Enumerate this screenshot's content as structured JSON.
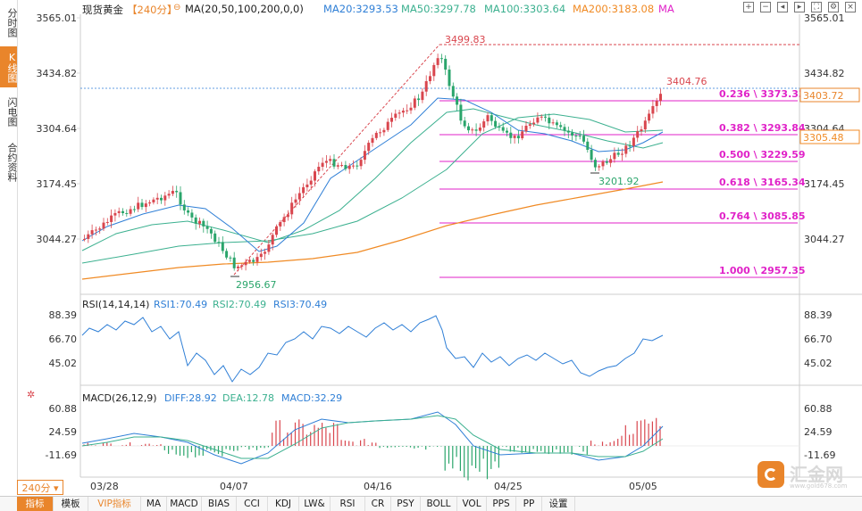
{
  "left_tabs": [
    "分时图",
    "K线图",
    "闪电图",
    "合约资料"
  ],
  "header": {
    "symbol": "现货黄金",
    "period_tag": "【240分】",
    "ma_label": "MA(20,50,100,200,0,0)",
    "ma20": "MA20:3293.53",
    "ma50": "MA50:3297.78",
    "ma100": "MA100:3303.64",
    "ma200": "MA200:3183.08",
    "ma_tail": "MA"
  },
  "price_axis": {
    "left": [
      "3565.01",
      "3434.82",
      "3304.64",
      "3174.45",
      "3044.27"
    ],
    "right": [
      "3565.01",
      "3434.82",
      "3304.64",
      "3174.45",
      "3044.27"
    ],
    "tag_last": "3403.72",
    "tag_ma": "3305.48"
  },
  "annotations": {
    "high": "3499.83",
    "low": "2956.67",
    "last": "3404.76",
    "swing_low": "3201.92"
  },
  "fib_levels": [
    {
      "label": "0.236 \\ 3373.33"
    },
    {
      "label": "0.382 \\ 3293.84"
    },
    {
      "label": "0.500 \\ 3229.59"
    },
    {
      "label": "0.618 \\ 3165.34"
    },
    {
      "label": "0.764 \\ 3085.85"
    },
    {
      "label": "1.000 \\ 2957.35"
    }
  ],
  "rsi": {
    "title": "RSI(14,14,14)",
    "rsi1": "RSI1:70.49",
    "rsi2": "RSI2:70.49",
    "rsi3": "RSI3:70.49",
    "ticks": [
      "88.39",
      "66.70",
      "45.02"
    ]
  },
  "macd": {
    "title": "MACD(26,12,9)",
    "diff": "DIFF:28.92",
    "dea": "DEA:12.78",
    "macd": "MACD:32.29",
    "ticks": [
      "60.88",
      "24.59",
      "-11.69"
    ]
  },
  "x_labels": [
    "03/28",
    "04/07",
    "04/16",
    "04/25",
    "05/05"
  ],
  "period_button": "240分 ▾",
  "bottom_tabs": [
    "指标",
    "模板",
    "VIP指标",
    "MA",
    "MACD",
    "BIAS",
    "CCI",
    "KDJ",
    "LW&",
    "RSI",
    "CR",
    "PSY",
    "BOLL",
    "VOL",
    "PPS",
    "PP",
    "设置"
  ],
  "logo": {
    "text": "汇金网",
    "sub": "www.gold678.com"
  },
  "colors": {
    "up": "#d9464e",
    "down": "#2aa56b",
    "accent": "#e9852b",
    "ma20": "#2f7fd6",
    "ma50": "#3bb08f",
    "ma200": "#f08a24",
    "fib": "#e022c8"
  }
}
